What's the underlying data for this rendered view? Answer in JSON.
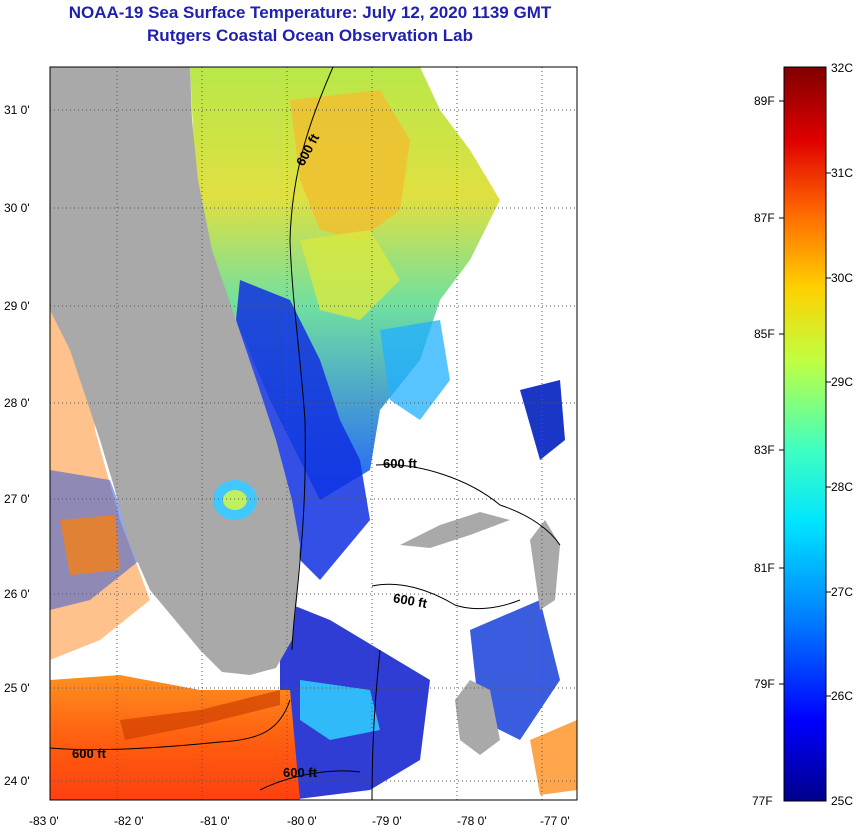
{
  "title_line1": "NOAA-19 Sea Surface Temperature:  July 12, 2020 1139 GMT",
  "title_line2": "Rutgers Coastal Ocean Observation Lab",
  "lat_ticks": [
    "31 0'",
    "30 0'",
    "29 0'",
    "28 0'",
    "27 0'",
    "26 0'",
    "25 0'",
    "24 0'"
  ],
  "lon_ticks": [
    "-83 0'",
    "-82 0'",
    "-81 0'",
    "-80 0'",
    "-79 0'",
    "-78 0'",
    "-77 0'"
  ],
  "contour_labels": [
    "600 ft",
    "600 ft",
    "600 ft",
    "600 ft",
    "600 ft"
  ],
  "colorbar": {
    "celsius": [
      "32C",
      "31C",
      "30C",
      "29C",
      "28C",
      "27C",
      "26C",
      "25C"
    ],
    "fahrenheit": [
      "89F",
      "87F",
      "85F",
      "83F",
      "81F",
      "79F",
      "77F"
    ],
    "colors": [
      "#00008b",
      "#0000ff",
      "#0080ff",
      "#00e5ff",
      "#40ffbf",
      "#c0ff40",
      "#ffd000",
      "#ff6a00",
      "#e00000",
      "#800000"
    ]
  },
  "land_color": "#a9a9a9",
  "cloud_color": "#ffffff"
}
